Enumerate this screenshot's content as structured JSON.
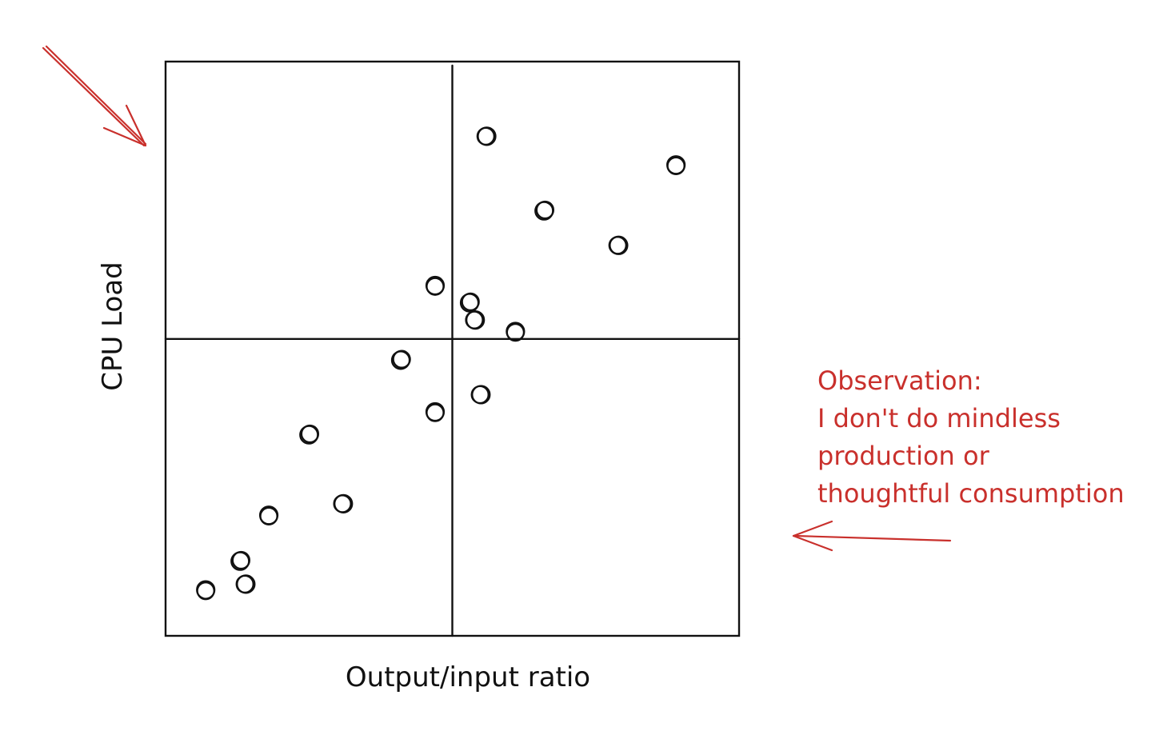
{
  "chart_data": {
    "type": "scatter",
    "title": "",
    "xlabel": "Output/input ratio",
    "ylabel": "CPU Load",
    "xlim": [
      0,
      10
    ],
    "ylim": [
      0,
      10
    ],
    "quadrant_dividers": {
      "x": 5,
      "y": 5.17
    },
    "grid": false,
    "legend": "none",
    "points": [
      {
        "x": 5.6,
        "y": 8.7
      },
      {
        "x": 8.9,
        "y": 8.2
      },
      {
        "x": 6.6,
        "y": 7.4
      },
      {
        "x": 7.9,
        "y": 6.8
      },
      {
        "x": 4.7,
        "y": 6.1
      },
      {
        "x": 5.3,
        "y": 5.8
      },
      {
        "x": 5.4,
        "y": 5.5
      },
      {
        "x": 6.1,
        "y": 5.3
      },
      {
        "x": 4.1,
        "y": 4.8
      },
      {
        "x": 5.5,
        "y": 4.2
      },
      {
        "x": 4.7,
        "y": 3.9
      },
      {
        "x": 2.5,
        "y": 3.5
      },
      {
        "x": 3.1,
        "y": 2.3
      },
      {
        "x": 1.8,
        "y": 2.1
      },
      {
        "x": 1.3,
        "y": 1.3
      },
      {
        "x": 1.4,
        "y": 0.9
      },
      {
        "x": 0.7,
        "y": 0.8
      }
    ],
    "colors": {
      "ink": "#111111",
      "annotation": "#c9302c"
    }
  },
  "annotation": {
    "lines": [
      "Observation:",
      "I don't do mindless",
      "production or",
      "thoughtful consumption"
    ]
  }
}
